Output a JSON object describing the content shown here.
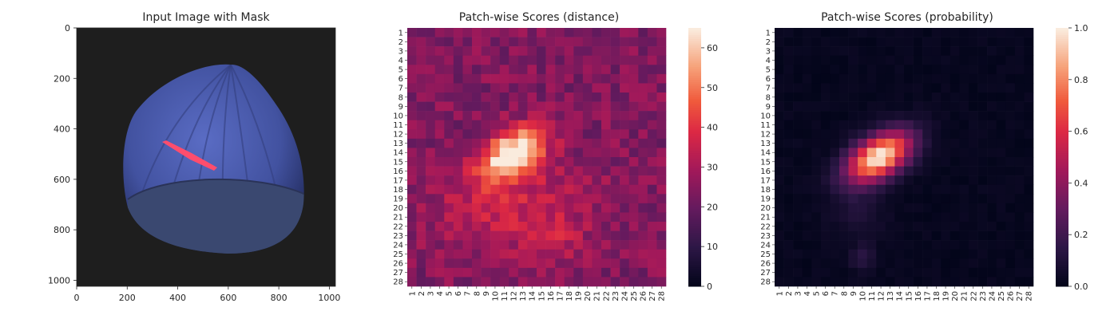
{
  "chart_data": [
    {
      "type": "image",
      "title": "Input Image with Mask",
      "x_ticks": [
        0,
        200,
        400,
        600,
        800,
        1000
      ],
      "y_ticks": [
        0,
        200,
        400,
        600,
        800,
        1000
      ],
      "xlim": [
        0,
        1024
      ],
      "ylim": [
        1024,
        0
      ],
      "colors": {
        "background": "#1e1e1e",
        "object": "#4a5aa8",
        "shell_base": "#3a4870",
        "mask": "#ff4d6d"
      }
    },
    {
      "type": "heatmap",
      "title": "Patch-wise Scores (distance)",
      "rows": 28,
      "cols": 28,
      "row_labels": [
        "1",
        "2",
        "3",
        "4",
        "5",
        "6",
        "7",
        "8",
        "9",
        "10",
        "11",
        "12",
        "13",
        "14",
        "15",
        "16",
        "17",
        "18",
        "19",
        "20",
        "21",
        "22",
        "23",
        "24",
        "25",
        "26",
        "27",
        "28"
      ],
      "col_labels": [
        "1",
        "2",
        "3",
        "4",
        "5",
        "6",
        "7",
        "8",
        "9",
        "10",
        "11",
        "12",
        "13",
        "14",
        "15",
        "16",
        "17",
        "18",
        "19",
        "20",
        "21",
        "22",
        "23",
        "24",
        "25",
        "26",
        "27",
        "28"
      ],
      "colorbar_range": [
        0,
        65
      ],
      "colorbar_ticks": [
        0,
        10,
        20,
        30,
        40,
        50,
        60
      ],
      "colormap": "rocket",
      "background_range": [
        18,
        30
      ],
      "hotspot_peak": 65
    },
    {
      "type": "heatmap",
      "title": "Patch-wise Scores (probability)",
      "rows": 28,
      "cols": 28,
      "row_labels": [
        "1",
        "2",
        "3",
        "4",
        "5",
        "6",
        "7",
        "8",
        "9",
        "10",
        "11",
        "12",
        "13",
        "14",
        "15",
        "16",
        "17",
        "18",
        "19",
        "20",
        "21",
        "22",
        "23",
        "24",
        "25",
        "26",
        "27",
        "28"
      ],
      "col_labels": [
        "1",
        "2",
        "3",
        "4",
        "5",
        "6",
        "7",
        "8",
        "9",
        "10",
        "11",
        "12",
        "13",
        "14",
        "15",
        "16",
        "17",
        "18",
        "19",
        "20",
        "21",
        "22",
        "23",
        "24",
        "25",
        "26",
        "27",
        "28"
      ],
      "colorbar_range": [
        0.0,
        1.0
      ],
      "colorbar_ticks": [
        "0.0",
        "0.2",
        "0.4",
        "0.6",
        "0.8",
        "1.0"
      ],
      "colormap": "rocket",
      "hotspot_peak": 1.0
    }
  ]
}
